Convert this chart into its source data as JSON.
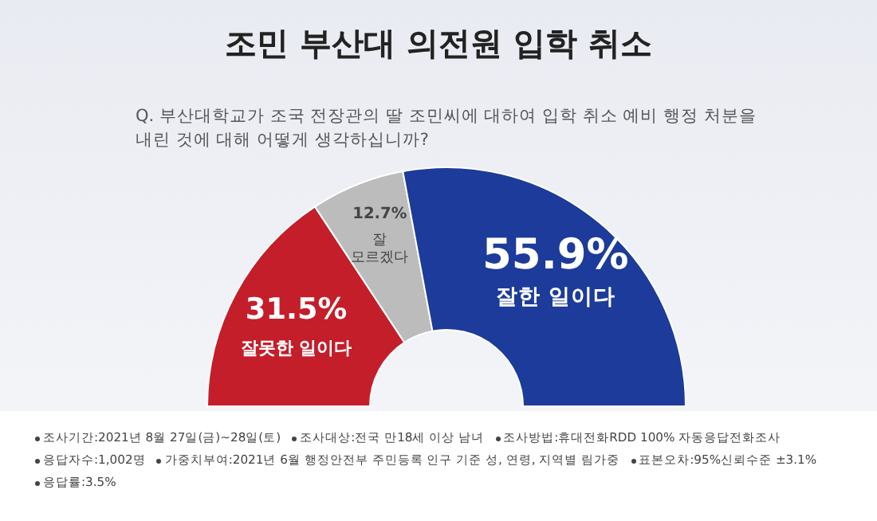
{
  "chart_data": {
    "type": "donut",
    "title": "조민 부산대 의전원 입학 취소",
    "subtitle": "Q. 부산대학교가 조국 전장관의 딸 조민씨에 대하여 입학 취소 예비 행정 처분을 내린 것에 대해 어떻게 생각하십니까?",
    "categories": [
      "잘못한 일이다",
      "잘 모르겠다",
      "잘한 일이다"
    ],
    "values": [
      31.5,
      12.7,
      55.9
    ],
    "colors": [
      "#c41e2a",
      "#bcbcbc",
      "#1d3b9a"
    ],
    "value_labels": [
      "31.5%",
      "12.7%",
      "55.9%"
    ],
    "annotations": [
      "조사기간:2021년 8월 27일(금)~28일(토)",
      "조사대상:전국 만18세 이상 남녀",
      "조사방법:휴대전화RDD 100% 자동응답전화조사",
      "응답자수:1,002명",
      "가중치부여:2021년 6월 행정안전부 주민등록 인구 기준 성, 연령, 지역별 림가중",
      "표본오차:95%신뢰수준 ±3.1%",
      "응답률:3.5%"
    ]
  }
}
